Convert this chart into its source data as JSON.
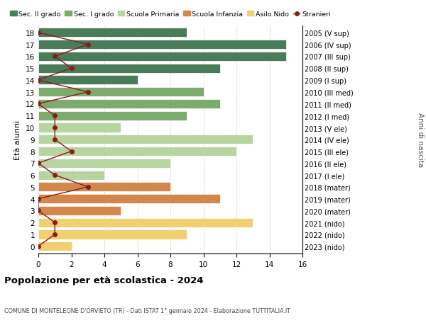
{
  "ages": [
    18,
    17,
    16,
    15,
    14,
    13,
    12,
    11,
    10,
    9,
    8,
    7,
    6,
    5,
    4,
    3,
    2,
    1,
    0
  ],
  "right_labels": [
    "2005 (V sup)",
    "2006 (IV sup)",
    "2007 (III sup)",
    "2008 (II sup)",
    "2009 (I sup)",
    "2010 (III med)",
    "2011 (II med)",
    "2012 (I med)",
    "2013 (V ele)",
    "2014 (IV ele)",
    "2015 (III ele)",
    "2016 (II ele)",
    "2017 (I ele)",
    "2018 (mater)",
    "2019 (mater)",
    "2020 (mater)",
    "2021 (nido)",
    "2022 (nido)",
    "2023 (nido)"
  ],
  "bar_values": [
    9,
    15,
    15,
    11,
    6,
    10,
    11,
    9,
    5,
    13,
    12,
    8,
    4,
    8,
    11,
    5,
    13,
    9,
    2
  ],
  "bar_colors": [
    "#4a7c59",
    "#4a7c59",
    "#4a7c59",
    "#4a7c59",
    "#4a7c59",
    "#7dab6e",
    "#7dab6e",
    "#7dab6e",
    "#b8d4a0",
    "#b8d4a0",
    "#b8d4a0",
    "#b8d4a0",
    "#b8d4a0",
    "#d4874a",
    "#d4874a",
    "#d4874a",
    "#f0d070",
    "#f0d070",
    "#f0d070"
  ],
  "stranieri_values": [
    0,
    3,
    1,
    2,
    0,
    3,
    0,
    1,
    1,
    1,
    2,
    0,
    1,
    3,
    0,
    0,
    1,
    1,
    0
  ],
  "stranieri_color": "#8b1a1a",
  "legend_items": [
    {
      "label": "Sec. II grado",
      "color": "#4a7c59"
    },
    {
      "label": "Sec. I grado",
      "color": "#7dab6e"
    },
    {
      "label": "Scuola Primaria",
      "color": "#b8d4a0"
    },
    {
      "label": "Scuola Infanzia",
      "color": "#d4874a"
    },
    {
      "label": "Asilo Nido",
      "color": "#f0d070"
    },
    {
      "label": "Stranieri",
      "color": "#8b1a1a"
    }
  ],
  "ylabel": "Età alunni",
  "ylabel_right": "Anni di nascita",
  "title": "Popolazione per età scolastica - 2024",
  "subtitle": "COMUNE DI MONTELEONE D'ORVIETO (TR) - Dati ISTAT 1° gennaio 2024 - Elaborazione TUTTITALIA.IT",
  "xlim": [
    0,
    16
  ],
  "xticks": [
    0,
    2,
    4,
    6,
    8,
    10,
    12,
    14,
    16
  ],
  "background_color": "#ffffff",
  "grid_color": "#cccccc",
  "bar_height": 0.78
}
